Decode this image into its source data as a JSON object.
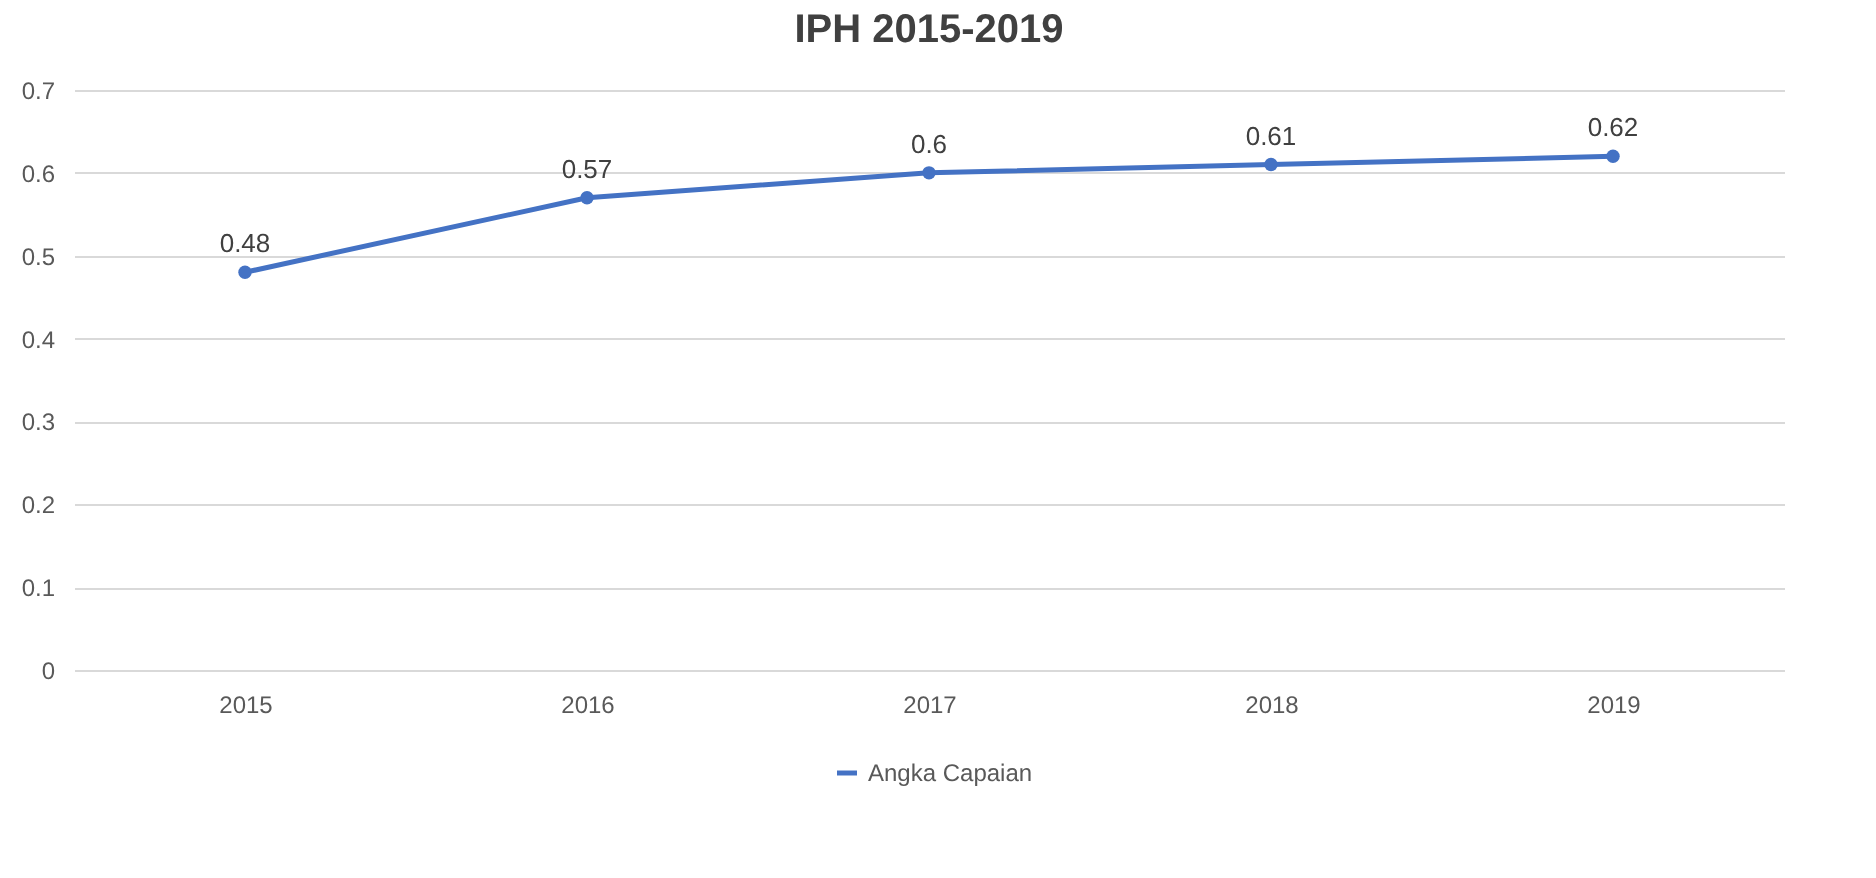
{
  "chart_data": {
    "type": "line",
    "title": "IPH 2015-2019",
    "categories": [
      "2015",
      "2016",
      "2017",
      "2018",
      "2019"
    ],
    "series": [
      {
        "name": "Angka Capaian",
        "color": "#4472c4",
        "values": [
          0.48,
          0.57,
          0.6,
          0.61,
          0.62
        ]
      }
    ],
    "ylim": [
      0,
      0.7
    ],
    "yticks": [
      0,
      0.1,
      0.2,
      0.3,
      0.4,
      0.5,
      0.6,
      0.7
    ],
    "grid": "y",
    "legend": "bottom",
    "marker": "circle",
    "data_labels": true
  }
}
